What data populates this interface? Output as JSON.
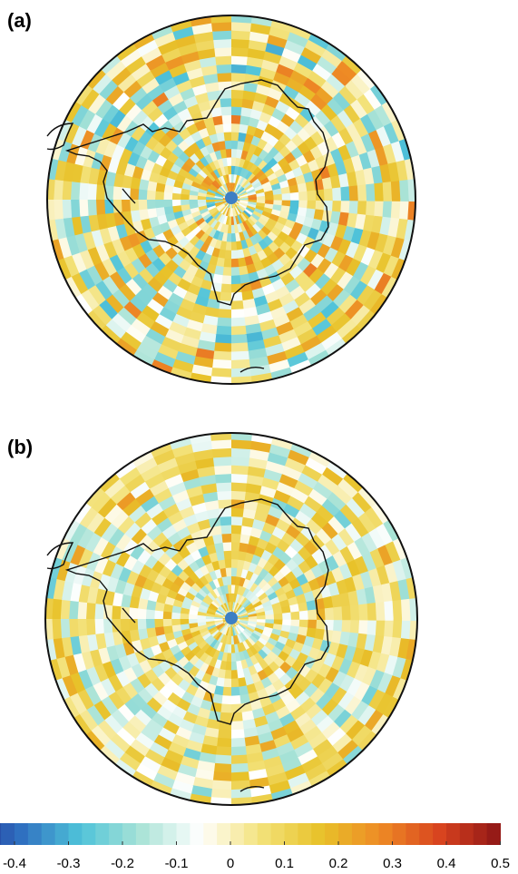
{
  "panels": [
    {
      "label": "(a)"
    },
    {
      "label": "(b)"
    }
  ],
  "colorbar": {
    "clim": [
      -0.5,
      0.5
    ],
    "ticks": [
      -0.4,
      -0.3,
      -0.2,
      -0.1,
      0,
      0.1,
      0.2,
      0.3,
      0.4,
      0.5
    ],
    "colors": [
      "#1f2a8c",
      "#2f6fc0",
      "#4fc3d9",
      "#a9e3d6",
      "#ffffff",
      "#f3e27a",
      "#e8c22a",
      "#ee8a25",
      "#d8431f",
      "#8e1616"
    ]
  }
}
